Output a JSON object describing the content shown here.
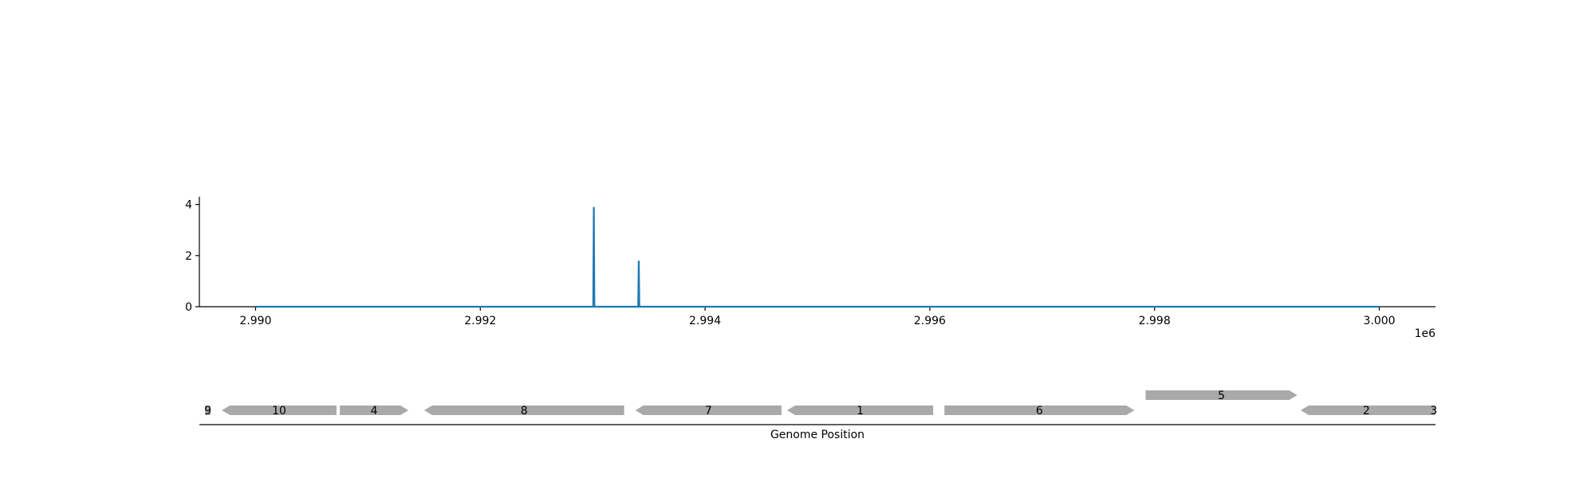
{
  "chart_data": {
    "type": "line",
    "title": "",
    "xlabel": "Genome Position",
    "ylabel": "",
    "x_offset_label": "1e6",
    "xlim": [
      2989500,
      3000500
    ],
    "ylim": [
      0,
      4.3
    ],
    "x_ticks": [
      {
        "value": 2990000,
        "label": "2.990"
      },
      {
        "value": 2992000,
        "label": "2.992"
      },
      {
        "value": 2994000,
        "label": "2.994"
      },
      {
        "value": 2996000,
        "label": "2.996"
      },
      {
        "value": 2998000,
        "label": "2.998"
      },
      {
        "value": 3000000,
        "label": "3.000"
      }
    ],
    "y_ticks": [
      {
        "value": 0,
        "label": "0"
      },
      {
        "value": 2,
        "label": "2"
      },
      {
        "value": 4,
        "label": "4"
      }
    ],
    "series": [
      {
        "color": "#1f77b4",
        "points": [
          {
            "x": 2990000,
            "y": 0
          },
          {
            "x": 2993005,
            "y": 0
          },
          {
            "x": 2993010,
            "y": 3.9
          },
          {
            "x": 2993015,
            "y": 0
          },
          {
            "x": 2993405,
            "y": 0
          },
          {
            "x": 2993410,
            "y": 1.8
          },
          {
            "x": 2993415,
            "y": 0
          },
          {
            "x": 3000000,
            "y": 0
          }
        ]
      }
    ],
    "genes": [
      {
        "label": "9",
        "start": 2989550,
        "end": 2989600,
        "strand": "-",
        "level": 0
      },
      {
        "label": "10",
        "start": 2989700,
        "end": 2990720,
        "strand": "-",
        "level": 0
      },
      {
        "label": "4",
        "start": 2990750,
        "end": 2991360,
        "strand": "+",
        "level": 0
      },
      {
        "label": "8",
        "start": 2991500,
        "end": 2993280,
        "strand": "-",
        "level": 0
      },
      {
        "label": "7",
        "start": 2993380,
        "end": 2994680,
        "strand": "-",
        "level": 0
      },
      {
        "label": "1",
        "start": 2994730,
        "end": 2996030,
        "strand": "-",
        "level": 0
      },
      {
        "label": "6",
        "start": 2996130,
        "end": 2997820,
        "strand": "+",
        "level": 0
      },
      {
        "label": "5",
        "start": 2997920,
        "end": 2999270,
        "strand": "+",
        "level": 1
      },
      {
        "label": "2",
        "start": 2999300,
        "end": 3000470,
        "strand": "-",
        "level": 0
      },
      {
        "label": "3",
        "start": 3000470,
        "end": 3000500,
        "strand": "+",
        "level": 0
      }
    ],
    "colors": {
      "line": "#1f77b4",
      "gene": "#a9a9a9",
      "axis": "#000000"
    },
    "grid": false,
    "legend": "none"
  }
}
